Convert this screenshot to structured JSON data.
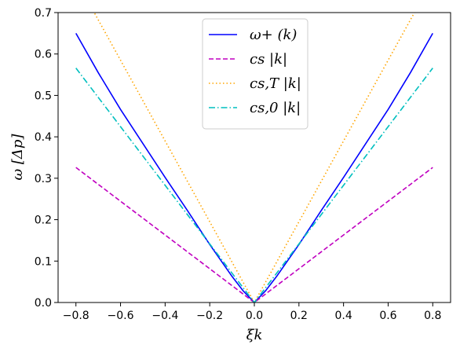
{
  "chart_data": {
    "type": "line",
    "title": "",
    "xlabel": "ξk",
    "ylabel": "ω [Δp]",
    "xlim": [
      -0.88,
      0.88
    ],
    "ylim": [
      0.0,
      0.7
    ],
    "grid": false,
    "legend_position": "top-center",
    "x_ticks": [
      -0.8,
      -0.6,
      -0.4,
      -0.2,
      0.0,
      0.2,
      0.4,
      0.6,
      0.8
    ],
    "x_tick_labels": [
      "−0.8",
      "−0.6",
      "−0.4",
      "−0.2",
      "0.0",
      "0.2",
      "0.4",
      "0.6",
      "0.8"
    ],
    "y_ticks": [
      0.0,
      0.1,
      0.2,
      0.3,
      0.4,
      0.5,
      0.6,
      0.7
    ],
    "y_tick_labels": [
      "0.0",
      "0.1",
      "0.2",
      "0.3",
      "0.4",
      "0.5",
      "0.6",
      "0.7"
    ],
    "series": [
      {
        "name": "ω+ (k)",
        "color": "#0000ff",
        "style": "solid",
        "x": [
          -0.8,
          -0.7,
          -0.6,
          -0.5,
          -0.4,
          -0.3,
          -0.2,
          -0.1,
          -0.05,
          0.0,
          0.05,
          0.1,
          0.2,
          0.3,
          0.4,
          0.5,
          0.6,
          0.7,
          0.8
        ],
        "y": [
          0.65,
          0.555,
          0.466,
          0.384,
          0.302,
          0.222,
          0.14,
          0.063,
          0.028,
          0.0,
          0.028,
          0.063,
          0.14,
          0.222,
          0.302,
          0.384,
          0.466,
          0.555,
          0.65
        ]
      },
      {
        "name": "cs |k|",
        "color": "#c000c0",
        "style": "dashed",
        "x": [
          -0.8,
          0.0,
          0.8
        ],
        "y": [
          0.326,
          0.0,
          0.326
        ]
      },
      {
        "name": "cs,T |k|",
        "color": "#ffa500",
        "style": "dotted",
        "x": [
          -0.8,
          0.0,
          0.8
        ],
        "y": [
          0.78,
          0.0,
          0.78
        ]
      },
      {
        "name": "cs,0 |k|",
        "color": "#00bfbf",
        "style": "dashdot",
        "x": [
          -0.8,
          0.0,
          0.8
        ],
        "y": [
          0.566,
          0.0,
          0.566
        ]
      }
    ]
  }
}
